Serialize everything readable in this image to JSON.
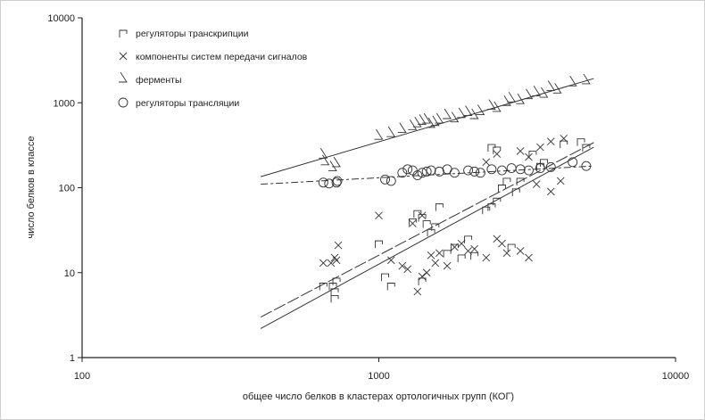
{
  "chart_data": {
    "type": "scatter",
    "title": "",
    "xlabel": "общее число белков в кластерах ортологичных групп (КОГ)",
    "ylabel": "число белков в классе",
    "xscale": "log",
    "yscale": "log",
    "xlim": [
      100,
      10000
    ],
    "ylim": [
      1,
      10000
    ],
    "xticks": [
      "100",
      "1000",
      "10000"
    ],
    "yticks": [
      "1",
      "10",
      "100",
      "1000",
      "10000"
    ],
    "grid": false,
    "legend_position": "top-left",
    "series": [
      {
        "name": "регуляторы транскрипции",
        "marker": "bracket",
        "fit": {
          "style": "long-dash",
          "x": [
            400,
            5300
          ],
          "y": [
            3.0,
            340
          ]
        },
        "points": [
          [
            650,
            7
          ],
          [
            700,
            7
          ],
          [
            710,
            6
          ],
          [
            720,
            8
          ],
          [
            710,
            5
          ],
          [
            1000,
            22
          ],
          [
            1050,
            9
          ],
          [
            1100,
            7
          ],
          [
            1300,
            40
          ],
          [
            1350,
            50
          ],
          [
            1400,
            45
          ],
          [
            1450,
            38
          ],
          [
            1500,
            30
          ],
          [
            1550,
            35
          ],
          [
            1600,
            60
          ],
          [
            1700,
            17
          ],
          [
            1800,
            20
          ],
          [
            1900,
            15
          ],
          [
            2000,
            25
          ],
          [
            2100,
            16
          ],
          [
            2300,
            55
          ],
          [
            2400,
            60
          ],
          [
            2500,
            70
          ],
          [
            2600,
            100
          ],
          [
            2400,
            300
          ],
          [
            2500,
            280
          ],
          [
            2700,
            120
          ],
          [
            2900,
            90
          ],
          [
            3000,
            120
          ],
          [
            3300,
            250
          ],
          [
            3500,
            180
          ],
          [
            3600,
            200
          ],
          [
            4200,
            330
          ],
          [
            4800,
            350
          ],
          [
            5000,
            300
          ],
          [
            2800,
            20
          ],
          [
            1400,
            8
          ]
        ]
      },
      {
        "name": "компоненты систем передачи сигналов",
        "marker": "cross",
        "fit": {
          "style": "solid",
          "x": [
            400,
            5300
          ],
          "y": [
            2.2,
            300
          ]
        },
        "points": [
          [
            650,
            13
          ],
          [
            690,
            13
          ],
          [
            710,
            15
          ],
          [
            730,
            21
          ],
          [
            720,
            14
          ],
          [
            1000,
            47
          ],
          [
            1100,
            14
          ],
          [
            1200,
            12
          ],
          [
            1250,
            11
          ],
          [
            1350,
            6
          ],
          [
            1400,
            9
          ],
          [
            1450,
            10
          ],
          [
            1500,
            16
          ],
          [
            1550,
            13
          ],
          [
            1600,
            17
          ],
          [
            1700,
            12
          ],
          [
            1800,
            20
          ],
          [
            1900,
            22
          ],
          [
            2000,
            18
          ],
          [
            2100,
            19
          ],
          [
            2300,
            15
          ],
          [
            2500,
            25
          ],
          [
            2600,
            22
          ],
          [
            2700,
            17
          ],
          [
            3000,
            18
          ],
          [
            3200,
            15
          ],
          [
            2300,
            200
          ],
          [
            2500,
            250
          ],
          [
            3000,
            270
          ],
          [
            3200,
            230
          ],
          [
            3500,
            300
          ],
          [
            3800,
            350
          ],
          [
            4200,
            380
          ],
          [
            3400,
            110
          ],
          [
            3800,
            90
          ],
          [
            4100,
            120
          ],
          [
            1400,
            47
          ],
          [
            1300,
            38
          ]
        ]
      },
      {
        "name": "ферменты",
        "marker": "angle",
        "fit": {
          "style": "solid",
          "x": [
            400,
            5300
          ],
          "y": [
            135,
            1930
          ]
        },
        "points": [
          [
            650,
            240
          ],
          [
            660,
            200
          ],
          [
            700,
            170
          ],
          [
            720,
            190
          ],
          [
            1000,
            400
          ],
          [
            1100,
            430
          ],
          [
            1200,
            480
          ],
          [
            1300,
            520
          ],
          [
            1350,
            560
          ],
          [
            1400,
            600
          ],
          [
            1450,
            620
          ],
          [
            1500,
            550
          ],
          [
            1550,
            580
          ],
          [
            1600,
            620
          ],
          [
            1700,
            700
          ],
          [
            1800,
            640
          ],
          [
            1900,
            720
          ],
          [
            2000,
            760
          ],
          [
            2100,
            700
          ],
          [
            2200,
            780
          ],
          [
            2400,
            900
          ],
          [
            2500,
            850
          ],
          [
            2700,
            1000
          ],
          [
            2800,
            1100
          ],
          [
            3000,
            1050
          ],
          [
            3200,
            1200
          ],
          [
            3400,
            1300
          ],
          [
            3600,
            1250
          ],
          [
            3800,
            1500
          ],
          [
            4000,
            1400
          ],
          [
            4500,
            1700
          ],
          [
            5000,
            1800
          ]
        ]
      },
      {
        "name": "регуляторы трансляции",
        "marker": "circle",
        "fit": {
          "style": "dash-dot",
          "x": [
            400,
            5300
          ],
          "y": [
            110,
            180
          ]
        },
        "points": [
          [
            650,
            115
          ],
          [
            680,
            112
          ],
          [
            720,
            115
          ],
          [
            725,
            120
          ],
          [
            1050,
            125
          ],
          [
            1100,
            120
          ],
          [
            1200,
            150
          ],
          [
            1250,
            165
          ],
          [
            1300,
            160
          ],
          [
            1350,
            140
          ],
          [
            1400,
            150
          ],
          [
            1450,
            155
          ],
          [
            1500,
            160
          ],
          [
            1600,
            155
          ],
          [
            1700,
            165
          ],
          [
            1800,
            150
          ],
          [
            2000,
            160
          ],
          [
            2100,
            155
          ],
          [
            2200,
            150
          ],
          [
            2400,
            165
          ],
          [
            2600,
            160
          ],
          [
            2800,
            170
          ],
          [
            3000,
            165
          ],
          [
            3200,
            160
          ],
          [
            3500,
            170
          ],
          [
            3800,
            175
          ],
          [
            4500,
            200
          ],
          [
            5000,
            180
          ]
        ]
      }
    ]
  }
}
